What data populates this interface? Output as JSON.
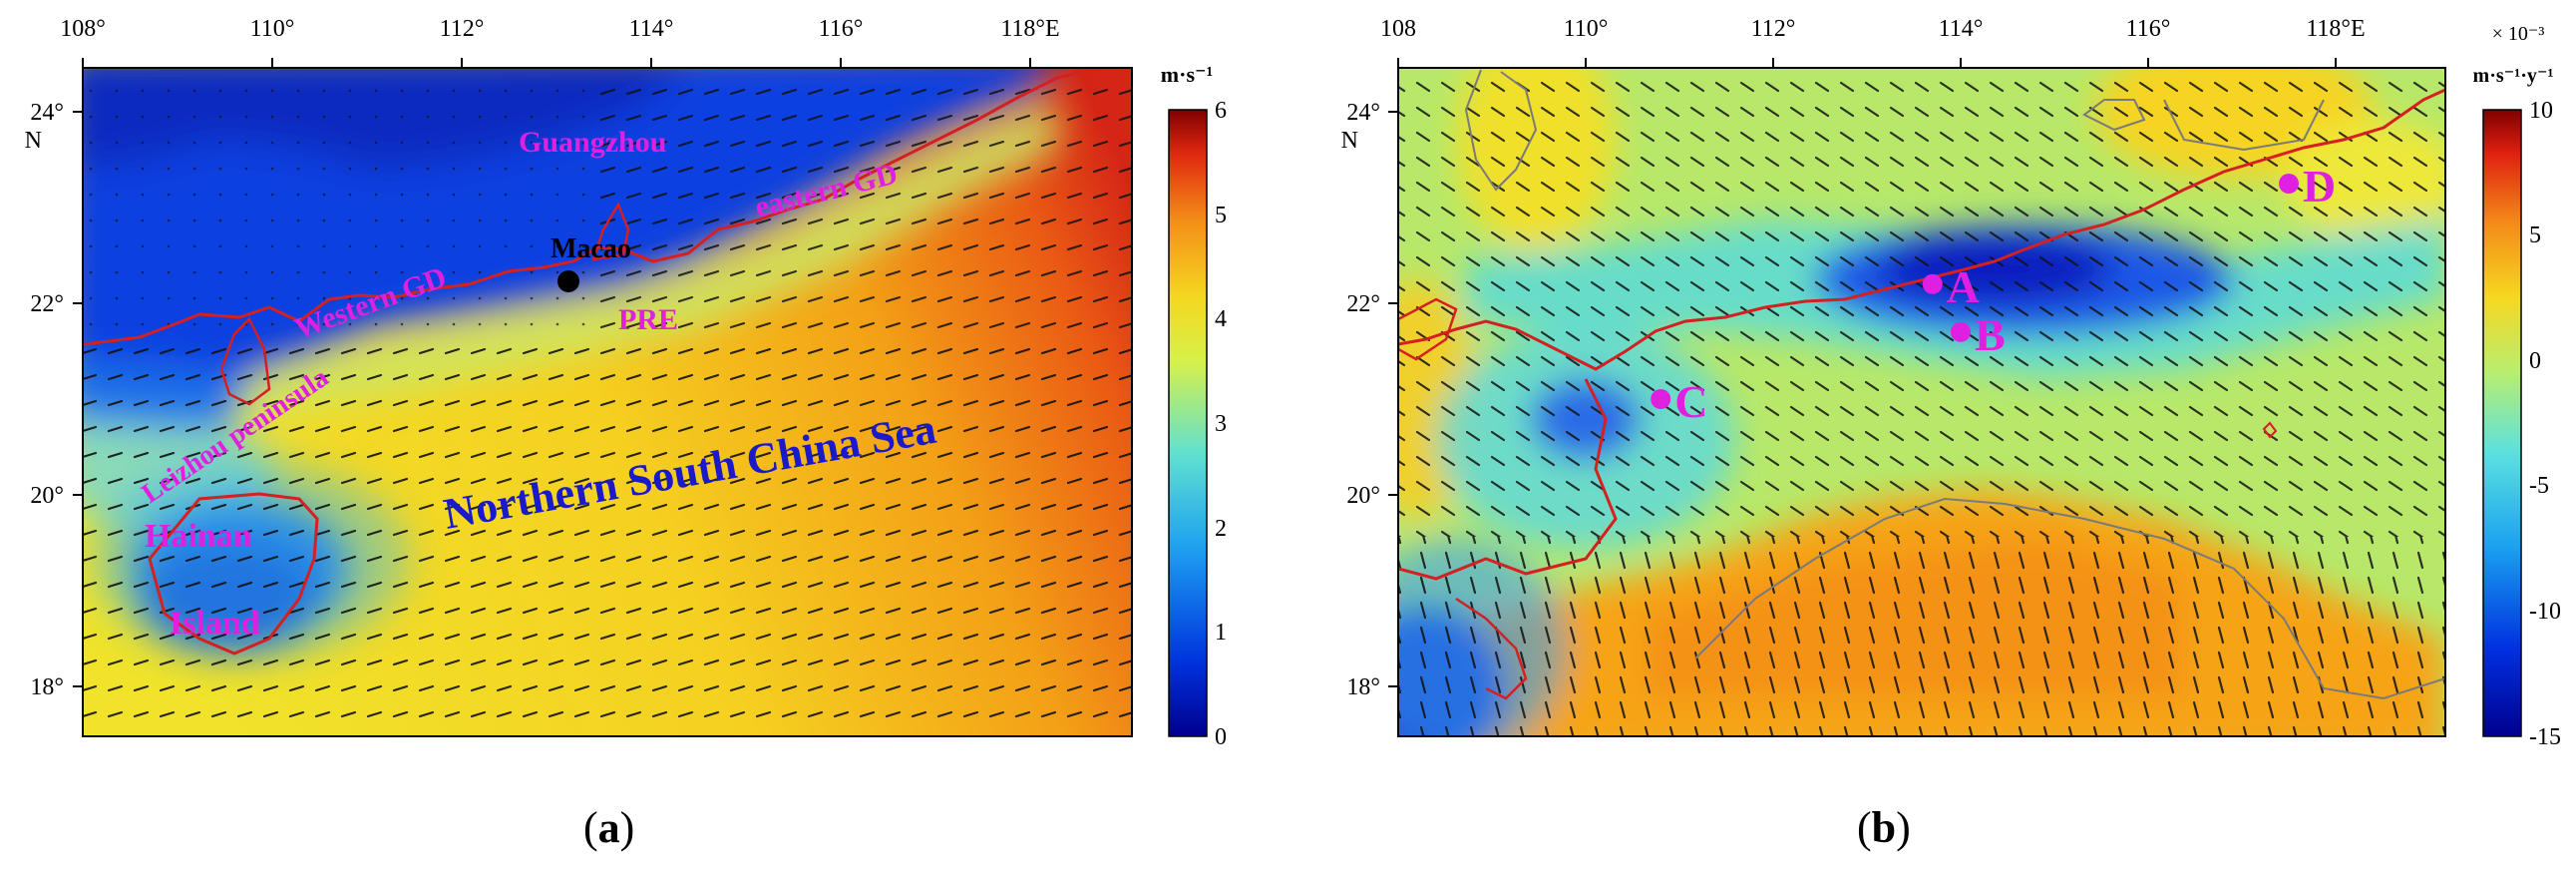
{
  "figure": {
    "panels": [
      {
        "id": "a",
        "caption": {
          "open": "(",
          "letter": "a",
          "close": ")"
        },
        "lon_ticks": [
          "108°",
          "110°",
          "112°",
          "114°",
          "116°",
          "118°E"
        ],
        "lat_ticks": [
          "24°",
          "22°",
          "20°",
          "18°"
        ],
        "lat_unit": "N",
        "colorbar": {
          "unit": "m·s⁻¹",
          "ticks": [
            "6",
            "5",
            "4",
            "3",
            "2",
            "1",
            "0"
          ],
          "min": 0,
          "max": 6
        },
        "labels": {
          "guangzhou": "Guangzhou",
          "eastern_gd": "eastern GD",
          "macao": "Macao",
          "western_gd": "Western GD",
          "pre": "PRE",
          "leizhou": "Leizhou peninsula",
          "hainan": "Hainan",
          "island": "Island",
          "nscs": "Northern South China Sea"
        },
        "colors": {
          "labels": "#e020e0",
          "sea_label": "#1a1acc",
          "coast": "#d42020",
          "macao_dot": "#000000"
        }
      },
      {
        "id": "b",
        "caption": {
          "open": "(",
          "letter": "b",
          "close": ")"
        },
        "lon_ticks": [
          "108",
          "110°",
          "112°",
          "114°",
          "116°",
          "118°E"
        ],
        "lat_ticks": [
          "24°",
          "22°",
          "20°",
          "18°"
        ],
        "lat_unit": "N",
        "colorbar": {
          "scale": "× 10⁻³",
          "unit": "m·s⁻¹·y⁻¹",
          "ticks": [
            "10",
            "5",
            "0",
            "-5",
            "-10",
            "-15"
          ],
          "min": -15,
          "max": 10
        },
        "points": [
          {
            "label": "A",
            "lon": 113.7,
            "lat": 22.2
          },
          {
            "label": "B",
            "lon": 114.0,
            "lat": 21.7
          },
          {
            "label": "C",
            "lon": 110.8,
            "lat": 21.0
          },
          {
            "label": "D",
            "lon": 117.5,
            "lat": 23.25
          }
        ],
        "colors": {
          "points": "#e020e0",
          "coast": "#d42020",
          "contour": "#7a7a7a"
        }
      }
    ]
  }
}
